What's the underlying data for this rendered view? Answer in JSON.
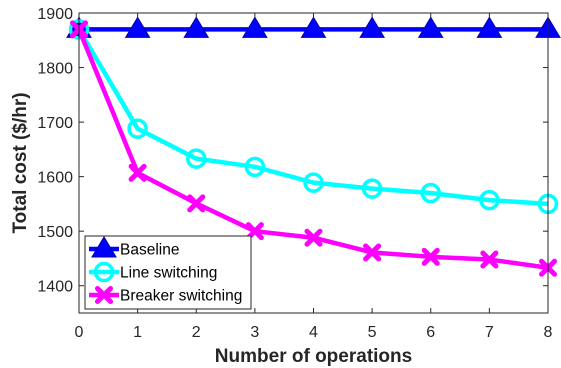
{
  "chart_data": {
    "type": "line",
    "xlabel": "Number of operations",
    "ylabel": "Total cost ($/hr)",
    "xlim": [
      0,
      8
    ],
    "ylim": [
      1350,
      1900
    ],
    "xticks": [
      "0",
      "1",
      "2",
      "3",
      "4",
      "5",
      "6",
      "7",
      "8"
    ],
    "yticks": [
      "1400",
      "1500",
      "1600",
      "1700",
      "1800",
      "1900"
    ],
    "grid": false,
    "legend_position": "bottom-left",
    "x": [
      0,
      1,
      2,
      3,
      4,
      5,
      6,
      7,
      8
    ],
    "series": [
      {
        "name": "Baseline",
        "marker": "triangle",
        "color": "#0000ff",
        "values": [
          1870,
          1870,
          1870,
          1870,
          1870,
          1870,
          1870,
          1870,
          1870
        ]
      },
      {
        "name": "Line switching",
        "marker": "circle",
        "color": "#00ffff",
        "values": [
          1870,
          1688,
          1633,
          1618,
          1589,
          1578,
          1570,
          1557,
          1550
        ]
      },
      {
        "name": "Breaker switching",
        "marker": "x",
        "color": "#ff00ff",
        "values": [
          1870,
          1607,
          1551,
          1500,
          1488,
          1461,
          1453,
          1448,
          1433
        ]
      }
    ]
  }
}
